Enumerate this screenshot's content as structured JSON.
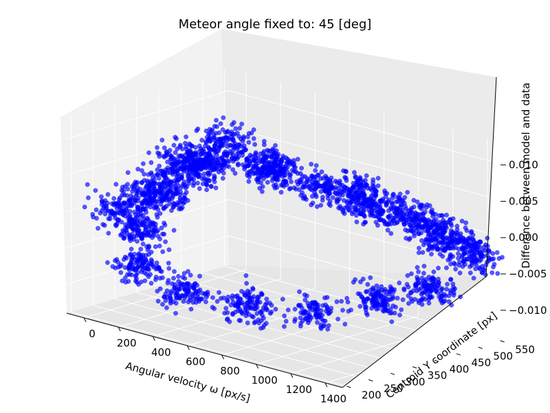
{
  "chart_data": {
    "type": "scatter",
    "projection": "3d",
    "title": "Meteor angle fixed to: 45 [deg]",
    "xlabel": "Angular velocity ω [px/s]",
    "ylabel": "Centroid Y coordinate [px]",
    "zlabel": "Difference between model and data",
    "xlim": [
      -100,
      1500
    ],
    "ylim": [
      190,
      560
    ],
    "zlim": [
      -0.014,
      0.013
    ],
    "x_ticks": [
      "0",
      "200",
      "400",
      "600",
      "800",
      "1000",
      "1200",
      "1400"
    ],
    "y_ticks": [
      "200",
      "250",
      "300",
      "350",
      "400",
      "450",
      "500",
      "550"
    ],
    "z_ticks": [
      "−0.010",
      "−0.005",
      "0.000",
      "0.005",
      "0.010"
    ],
    "grid": true,
    "series": [
      {
        "color": "#0000ff",
        "point_count": 3000,
        "points_representative": [
          [
            100,
            225,
            0.001
          ],
          [
            150,
            260,
            -0.002
          ],
          [
            200,
            300,
            0.003
          ],
          [
            250,
            240,
            0.004
          ],
          [
            300,
            320,
            0.006
          ],
          [
            350,
            280,
            0.008
          ],
          [
            400,
            360,
            0.01
          ],
          [
            450,
            300,
            0.009
          ],
          [
            500,
            420,
            0.006
          ],
          [
            600,
            380,
            0.007
          ],
          [
            700,
            450,
            0.004
          ],
          [
            800,
            500,
            0.003
          ],
          [
            900,
            480,
            0.002
          ],
          [
            1000,
            520,
            0.001
          ],
          [
            1100,
            540,
            0.0
          ],
          [
            1200,
            530,
            -0.001
          ],
          [
            1300,
            550,
            -0.002
          ],
          [
            1400,
            540,
            -0.003
          ],
          [
            250,
            220,
            -0.006
          ],
          [
            400,
            260,
            -0.009
          ],
          [
            600,
            330,
            -0.011
          ],
          [
            800,
            400,
            -0.012
          ],
          [
            1000,
            470,
            -0.01
          ],
          [
            1200,
            510,
            -0.008
          ]
        ]
      }
    ]
  }
}
